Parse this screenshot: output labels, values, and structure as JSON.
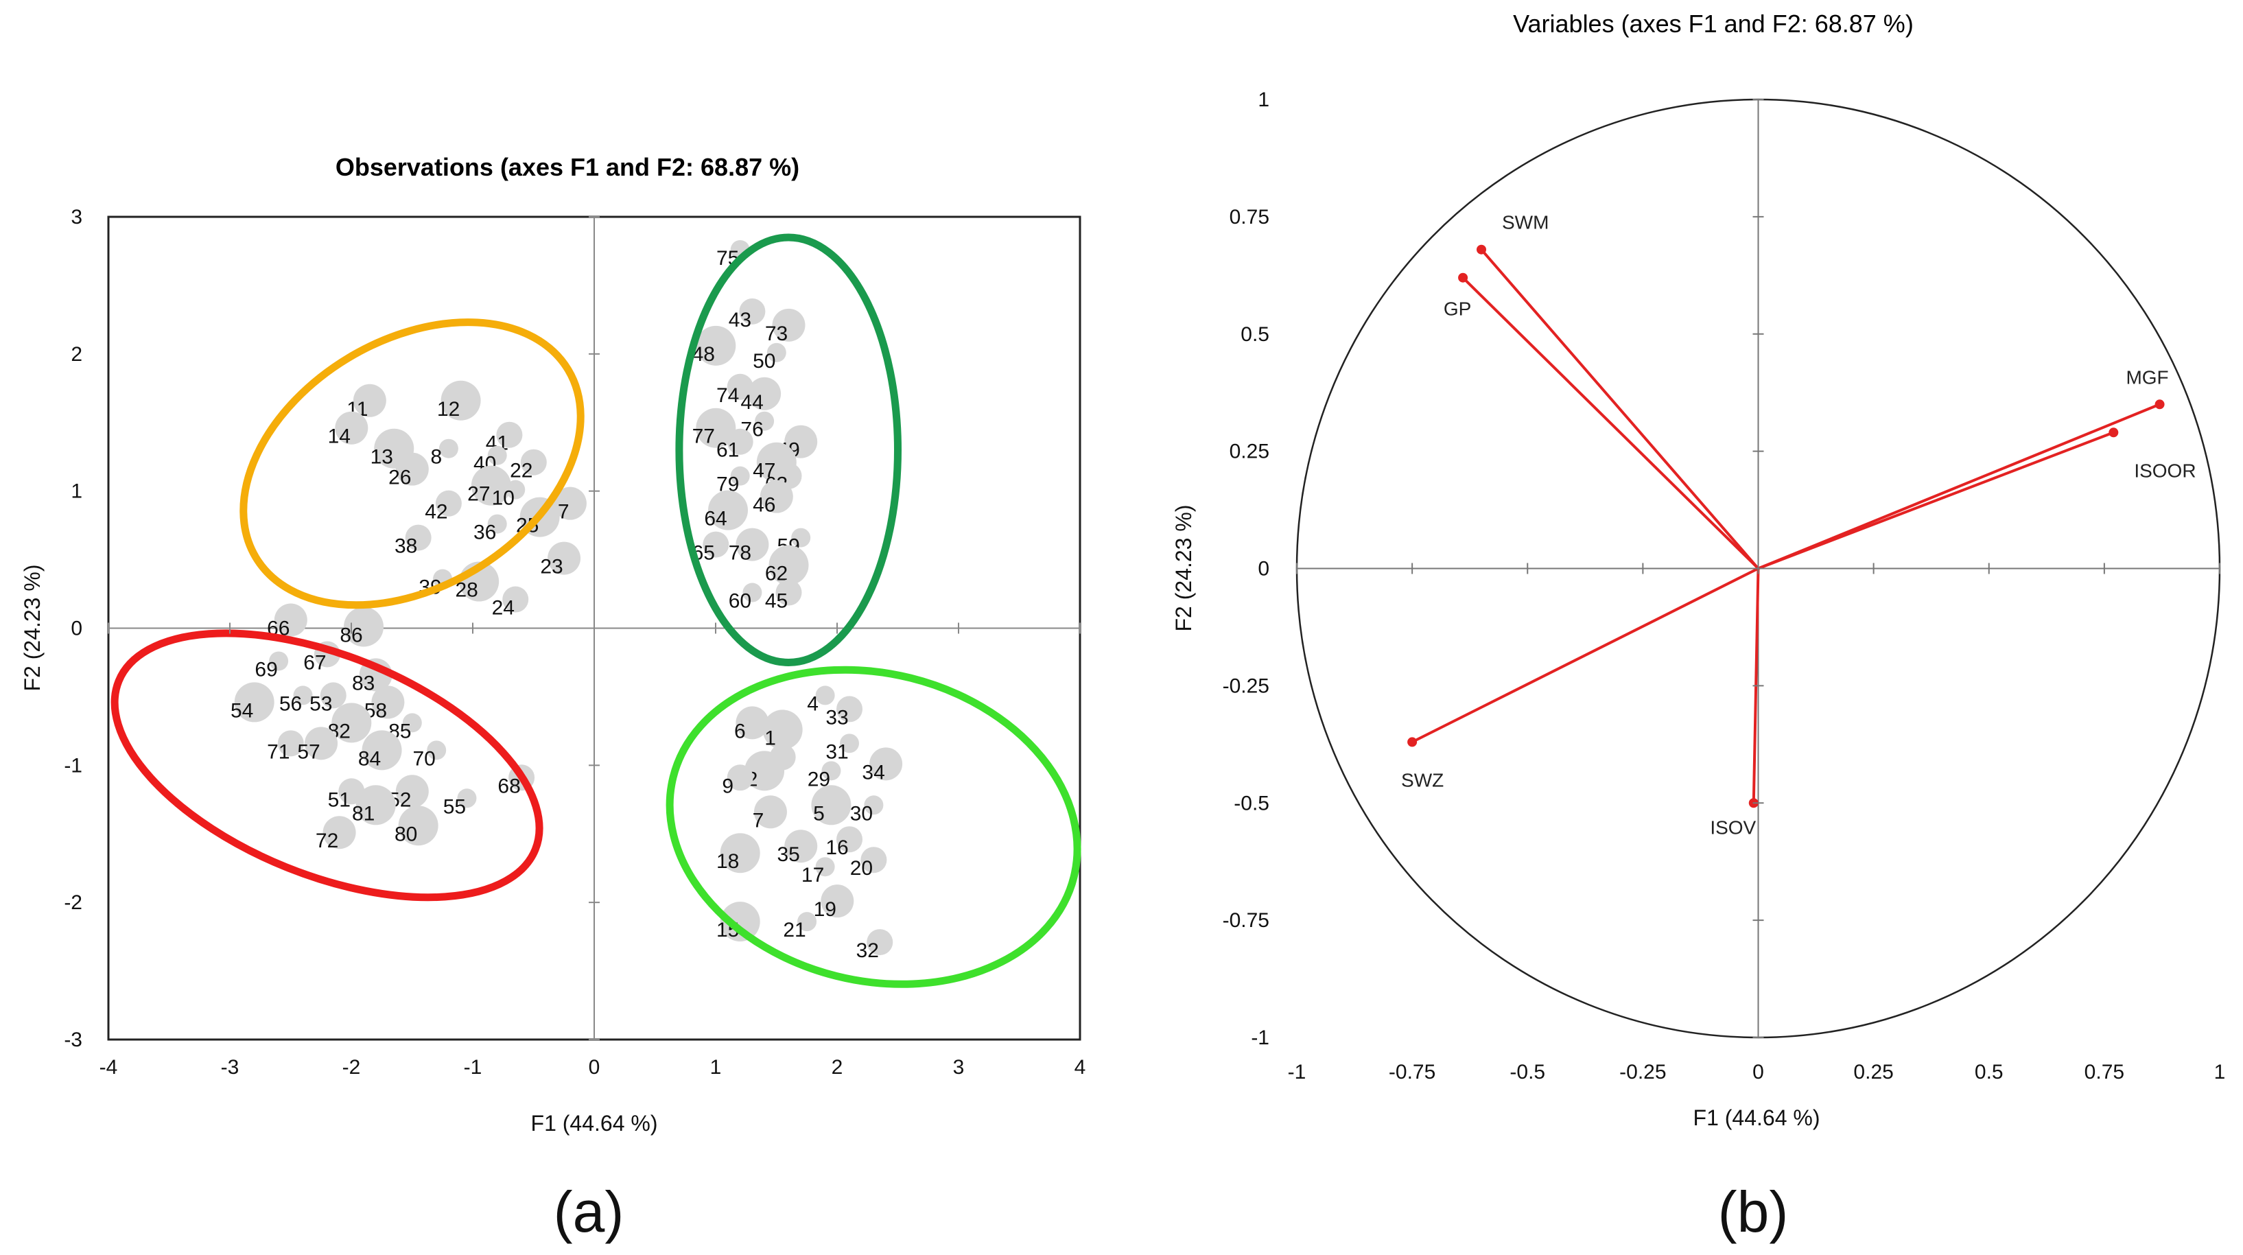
{
  "chart_data": [
    {
      "type": "scatter",
      "panel_label": "(a)",
      "title": "Observations (axes F1 and F2: 68.87 %)",
      "xlabel": "F1 (44.64 %)",
      "ylabel": "F2 (24.23 %)",
      "xlim": [
        -4,
        4
      ],
      "ylim": [
        -3,
        3
      ],
      "xticks": [
        -4,
        -3,
        -2,
        -1,
        0,
        1,
        2,
        3,
        4
      ],
      "yticks": [
        -3,
        -2,
        -1,
        0,
        1,
        2,
        3
      ],
      "xtick_labels": [
        "-4",
        "-3",
        "-2",
        "-1",
        "0",
        "1",
        "2",
        "3",
        "4"
      ],
      "ytick_labels": [
        "-3",
        "-2",
        "-1",
        "0",
        "1",
        "2",
        "3"
      ],
      "points": [
        {
          "label": "75",
          "x": 1.1,
          "y": 2.7
        },
        {
          "label": "43",
          "x": 1.2,
          "y": 2.25
        },
        {
          "label": "73",
          "x": 1.5,
          "y": 2.15
        },
        {
          "label": "48",
          "x": 0.9,
          "y": 2.0
        },
        {
          "label": "50",
          "x": 1.4,
          "y": 1.95
        },
        {
          "label": "74",
          "x": 1.1,
          "y": 1.7
        },
        {
          "label": "44",
          "x": 1.3,
          "y": 1.65
        },
        {
          "label": "77",
          "x": 0.9,
          "y": 1.4
        },
        {
          "label": "76",
          "x": 1.3,
          "y": 1.45
        },
        {
          "label": "61",
          "x": 1.1,
          "y": 1.3
        },
        {
          "label": "49",
          "x": 1.6,
          "y": 1.3
        },
        {
          "label": "47",
          "x": 1.4,
          "y": 1.15
        },
        {
          "label": "79",
          "x": 1.1,
          "y": 1.05
        },
        {
          "label": "63",
          "x": 1.5,
          "y": 1.05
        },
        {
          "label": "46",
          "x": 1.4,
          "y": 0.9
        },
        {
          "label": "64",
          "x": 1.0,
          "y": 0.8
        },
        {
          "label": "59",
          "x": 1.6,
          "y": 0.6
        },
        {
          "label": "65",
          "x": 0.9,
          "y": 0.55
        },
        {
          "label": "78",
          "x": 1.2,
          "y": 0.55
        },
        {
          "label": "62",
          "x": 1.5,
          "y": 0.4
        },
        {
          "label": "60",
          "x": 1.2,
          "y": 0.2
        },
        {
          "label": "45",
          "x": 1.5,
          "y": 0.2
        },
        {
          "label": "11",
          "x": -1.95,
          "y": 1.6
        },
        {
          "label": "12",
          "x": -1.2,
          "y": 1.6
        },
        {
          "label": "8",
          "x": -1.3,
          "y": 1.25
        },
        {
          "label": "41",
          "x": -0.8,
          "y": 1.35
        },
        {
          "label": "14",
          "x": -2.1,
          "y": 1.4
        },
        {
          "label": "13",
          "x": -1.75,
          "y": 1.25
        },
        {
          "label": "40",
          "x": -0.9,
          "y": 1.2
        },
        {
          "label": "22",
          "x": -0.6,
          "y": 1.15
        },
        {
          "label": "26",
          "x": -1.6,
          "y": 1.1
        },
        {
          "label": "27",
          "x": -0.95,
          "y": 0.98
        },
        {
          "label": "10",
          "x": -0.75,
          "y": 0.95
        },
        {
          "label": "42",
          "x": -1.3,
          "y": 0.85
        },
        {
          "label": "37",
          "x": -0.3,
          "y": 0.85
        },
        {
          "label": "25",
          "x": -0.55,
          "y": 0.75
        },
        {
          "label": "36",
          "x": -0.9,
          "y": 0.7
        },
        {
          "label": "38",
          "x": -1.55,
          "y": 0.6
        },
        {
          "label": "23",
          "x": -0.35,
          "y": 0.45
        },
        {
          "label": "28",
          "x": -1.05,
          "y": 0.28
        },
        {
          "label": "39",
          "x": -1.35,
          "y": 0.3
        },
        {
          "label": "24",
          "x": -0.75,
          "y": 0.15
        },
        {
          "label": "66",
          "x": -2.6,
          "y": 0.0
        },
        {
          "label": "86",
          "x": -2.0,
          "y": -0.05
        },
        {
          "label": "69",
          "x": -2.7,
          "y": -0.3
        },
        {
          "label": "67",
          "x": -2.3,
          "y": -0.25
        },
        {
          "label": "83",
          "x": -1.9,
          "y": -0.4
        },
        {
          "label": "54",
          "x": -2.9,
          "y": -0.6
        },
        {
          "label": "56",
          "x": -2.5,
          "y": -0.55
        },
        {
          "label": "53",
          "x": -2.25,
          "y": -0.55
        },
        {
          "label": "58",
          "x": -1.8,
          "y": -0.6
        },
        {
          "label": "82",
          "x": -2.1,
          "y": -0.75
        },
        {
          "label": "85",
          "x": -1.6,
          "y": -0.75
        },
        {
          "label": "71",
          "x": -2.6,
          "y": -0.9
        },
        {
          "label": "57",
          "x": -2.35,
          "y": -0.9
        },
        {
          "label": "84",
          "x": -1.85,
          "y": -0.95
        },
        {
          "label": "70",
          "x": -1.4,
          "y": -0.95
        },
        {
          "label": "51",
          "x": -2.1,
          "y": -1.25
        },
        {
          "label": "52",
          "x": -1.6,
          "y": -1.25
        },
        {
          "label": "81",
          "x": -1.9,
          "y": -1.35
        },
        {
          "label": "55",
          "x": -1.15,
          "y": -1.3
        },
        {
          "label": "68",
          "x": -0.7,
          "y": -1.15
        },
        {
          "label": "72",
          "x": -2.2,
          "y": -1.55
        },
        {
          "label": "80",
          "x": -1.55,
          "y": -1.5
        },
        {
          "label": "4",
          "x": 1.8,
          "y": -0.55
        },
        {
          "label": "33",
          "x": 2.0,
          "y": -0.65
        },
        {
          "label": "6",
          "x": 1.2,
          "y": -0.75
        },
        {
          "label": "1",
          "x": 1.45,
          "y": -0.8
        },
        {
          "label": "31",
          "x": 2.0,
          "y": -0.9
        },
        {
          "label": "3",
          "x": 1.45,
          "y": -1.0
        },
        {
          "label": "34",
          "x": 2.3,
          "y": -1.05
        },
        {
          "label": "2",
          "x": 1.3,
          "y": -1.1
        },
        {
          "label": "29",
          "x": 1.85,
          "y": -1.1
        },
        {
          "label": "9",
          "x": 1.1,
          "y": -1.15
        },
        {
          "label": "7",
          "x": 1.35,
          "y": -1.4
        },
        {
          "label": "5",
          "x": 1.85,
          "y": -1.35
        },
        {
          "label": "30",
          "x": 2.2,
          "y": -1.35
        },
        {
          "label": "16",
          "x": 2.0,
          "y": -1.6
        },
        {
          "label": "35",
          "x": 1.6,
          "y": -1.65
        },
        {
          "label": "18",
          "x": 1.1,
          "y": -1.7
        },
        {
          "label": "17",
          "x": 1.8,
          "y": -1.8
        },
        {
          "label": "20",
          "x": 2.2,
          "y": -1.75
        },
        {
          "label": "19",
          "x": 1.9,
          "y": -2.05
        },
        {
          "label": "15",
          "x": 1.1,
          "y": -2.2
        },
        {
          "label": "21",
          "x": 1.65,
          "y": -2.2
        },
        {
          "label": "32",
          "x": 2.25,
          "y": -2.35
        }
      ],
      "clusters": [
        {
          "name": "cluster-top-left",
          "color": "#f5ad0a",
          "cx": -1.5,
          "cy": 1.2,
          "rx": 1.5,
          "ry": 0.9,
          "rotate": 31
        },
        {
          "name": "cluster-top-right",
          "color": "#1a9a4d",
          "cx": 1.6,
          "cy": 1.3,
          "rx": 0.9,
          "ry": 1.55,
          "rotate": 0
        },
        {
          "name": "cluster-bottom-left",
          "color": "#ed1c1c",
          "cx": -2.2,
          "cy": -1.0,
          "rx": 1.85,
          "ry": 0.8,
          "rotate": -22
        },
        {
          "name": "cluster-bottom-right",
          "color": "#3ee02c",
          "cx": 2.3,
          "cy": -1.45,
          "rx": 1.7,
          "ry": 1.12,
          "rotate": -14
        }
      ]
    },
    {
      "type": "correlation-circle",
      "panel_label": "(b)",
      "title": "Variables (axes F1 and F2: 68.87 %)",
      "xlabel": "F1 (44.64 %)",
      "ylabel": "F2 (24.23 %)",
      "xlim": [
        -1,
        1
      ],
      "ylim": [
        -1,
        1
      ],
      "xticks": [
        -1,
        -0.75,
        -0.5,
        -0.25,
        0,
        0.25,
        0.5,
        0.75,
        1
      ],
      "yticks": [
        -1,
        -0.75,
        -0.5,
        -0.25,
        0,
        0.25,
        0.5,
        0.75,
        1
      ],
      "xtick_labels": [
        "-1",
        "-0.75",
        "-0.5",
        "-0.25",
        "0",
        "0.25",
        "0.5",
        "0.75",
        "1"
      ],
      "ytick_labels": [
        "-1",
        "-0.75",
        "-0.5",
        "-0.25",
        "0",
        "0.25",
        "0.5",
        "0.75",
        "1"
      ],
      "vector_color": "#e32222",
      "vectors": [
        {
          "name": "SWM",
          "x": -0.6,
          "y": 0.68
        },
        {
          "name": "GP",
          "x": -0.64,
          "y": 0.62
        },
        {
          "name": "MGF",
          "x": 0.87,
          "y": 0.35
        },
        {
          "name": "ISOOR",
          "x": 0.77,
          "y": 0.29
        },
        {
          "name": "SWZ",
          "x": -0.75,
          "y": -0.37
        },
        {
          "name": "ISOV",
          "x": -0.01,
          "y": -0.5
        }
      ]
    }
  ]
}
